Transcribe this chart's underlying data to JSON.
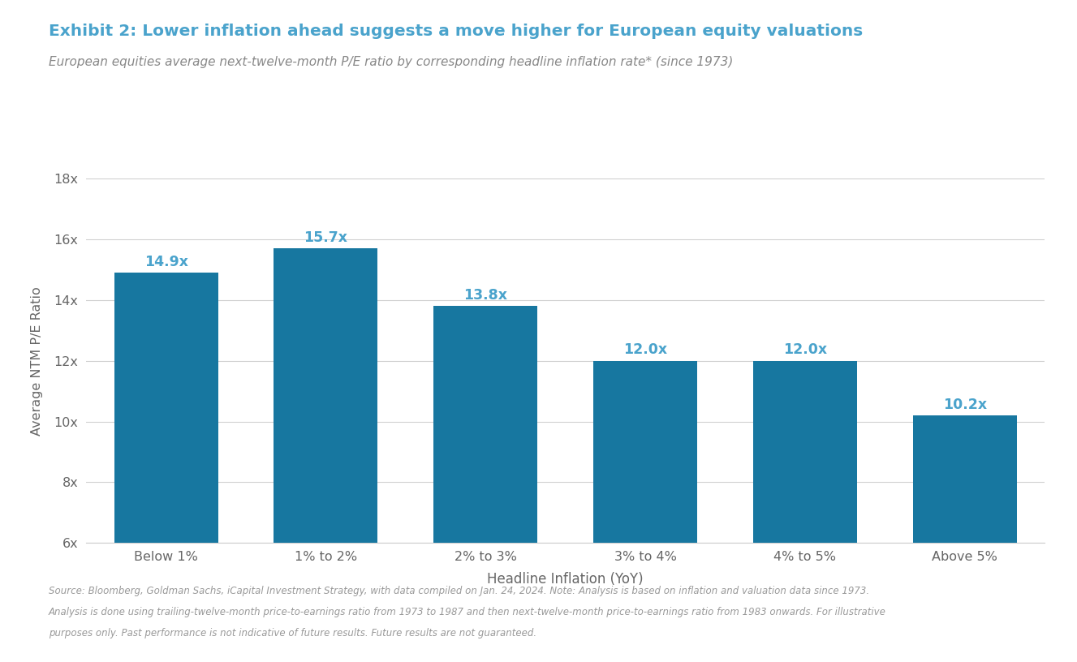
{
  "title": "Exhibit 2: Lower inflation ahead suggests a move higher for European equity valuations",
  "subtitle": "European equities average next-twelve-month P/E ratio by corresponding headline inflation rate* (since 1973)",
  "categories": [
    "Below 1%",
    "1% to 2%",
    "2% to 3%",
    "3% to 4%",
    "4% to 5%",
    "Above 5%"
  ],
  "values": [
    14.9,
    15.7,
    13.8,
    12.0,
    12.0,
    10.2
  ],
  "bar_color": "#1777a0",
  "xlabel": "Headline Inflation (YoY)",
  "ylabel": "Average NTM P/E Ratio",
  "ylim": [
    6,
    18
  ],
  "yticks": [
    6,
    8,
    10,
    12,
    14,
    16,
    18
  ],
  "ytick_labels": [
    "6x",
    "8x",
    "10x",
    "12x",
    "14x",
    "16x",
    "18x"
  ],
  "value_labels": [
    "14.9x",
    "15.7x",
    "13.8x",
    "12.0x",
    "12.0x",
    "10.2x"
  ],
  "title_color": "#4aa3cc",
  "subtitle_color": "#888888",
  "footnote_line1": "Source: Bloomberg, Goldman Sachs, iCapital Investment Strategy, with data compiled on Jan. 24, 2024. Note: Analysis is based on inflation and valuation data since 1973.",
  "footnote_line2": "Analysis is done using trailing-twelve-month price-to-earnings ratio from 1973 to 1987 and then next-twelve-month price-to-earnings ratio from 1983 onwards. For illustrative",
  "footnote_line3": "purposes only. Past performance is not indicative of future results. Future results are not guaranteed.",
  "footnote_color": "#999999",
  "background_color": "#ffffff",
  "grid_color": "#d0d0d0",
  "label_color": "#4aa3cc",
  "axis_color": "#cccccc",
  "tick_color": "#666666"
}
